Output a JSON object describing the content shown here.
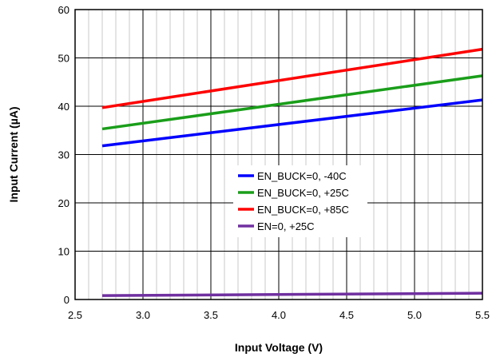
{
  "chart_data": {
    "type": "line",
    "title": "",
    "xlabel": "Input Voltage (V)",
    "ylabel": "Input Current (µA)",
    "xlim": [
      2.5,
      5.5
    ],
    "ylim": [
      0,
      60
    ],
    "x_ticks": [
      "2.5",
      "3.0",
      "3.5",
      "4.0",
      "4.5",
      "5.0",
      "5.5"
    ],
    "y_ticks": [
      "0",
      "10",
      "20",
      "30",
      "40",
      "50",
      "60"
    ],
    "grid": true,
    "legend_position": "center-right",
    "series": [
      {
        "name": "EN_BUCK=0, -40C",
        "color": "#0000ff",
        "x": [
          2.7,
          5.5
        ],
        "y": [
          31.8,
          41.3
        ]
      },
      {
        "name": "EN_BUCK=0, +25C",
        "color": "#1a9e1a",
        "x": [
          2.7,
          5.5
        ],
        "y": [
          35.3,
          46.3
        ]
      },
      {
        "name": "EN_BUCK=0, +85C",
        "color": "#ff0000",
        "x": [
          2.7,
          5.5
        ],
        "y": [
          39.7,
          51.8
        ]
      },
      {
        "name": "EN=0, +25C",
        "color": "#7030a0",
        "x": [
          2.7,
          5.5
        ],
        "y": [
          0.8,
          1.3
        ]
      }
    ]
  }
}
